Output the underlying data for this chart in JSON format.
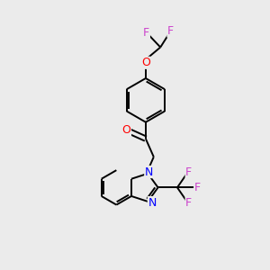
{
  "background_color": "#ebebeb",
  "bond_color": "#000000",
  "atom_colors": {
    "O": "#ff0000",
    "N": "#0000ff",
    "F": "#cc44cc",
    "C": "#000000"
  },
  "figsize": [
    3.0,
    3.0
  ],
  "dpi": 100,
  "lw": 1.4,
  "off": 0.09
}
